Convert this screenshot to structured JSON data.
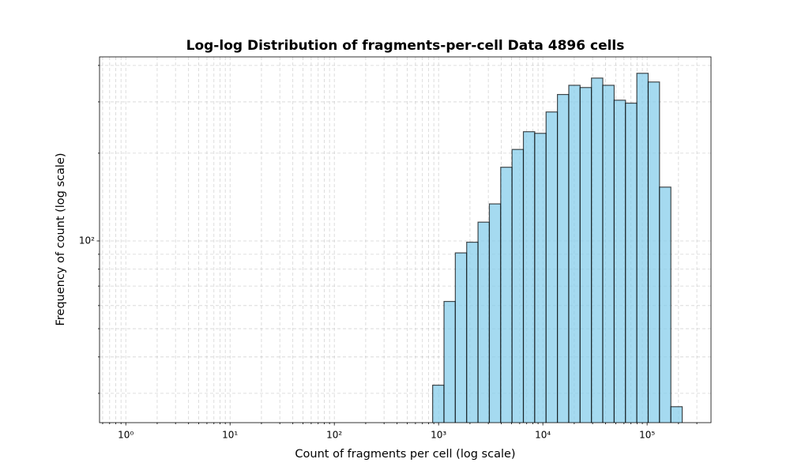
{
  "chart_data": {
    "type": "histogram",
    "title": "Log-log Distribution of fragments-per-cell Data 4896 cells",
    "xlabel": "Count of fragments per cell (log scale)",
    "ylabel": "Frequency of count (log scale)",
    "bins": [
      877,
      1127,
      1447,
      1860,
      2389,
      3069,
      3943,
      5065,
      6507,
      8360,
      10740,
      13800,
      17730,
      22770,
      29260,
      37580,
      48290,
      62030,
      79690,
      102400,
      131500,
      169000,
      217100
    ],
    "values": [
      32,
      62,
      91,
      99,
      116,
      134,
      179,
      206,
      237,
      234,
      277,
      318,
      342,
      336,
      362,
      342,
      304,
      297,
      376,
      351,
      153,
      27
    ],
    "color": "#87ceeb",
    "edgecolor": "#000000",
    "xlog": true,
    "ylog": true,
    "grid": true,
    "xlim": [
      0.56,
      410000
    ],
    "ylim": [
      23.8,
      428
    ],
    "xticks": [
      {
        "value": 1,
        "label": "10⁰"
      },
      {
        "value": 10,
        "label": "10¹"
      },
      {
        "value": 100,
        "label": "10²"
      },
      {
        "value": 1000,
        "label": "10³"
      },
      {
        "value": 10000,
        "label": "10⁴"
      },
      {
        "value": 100000,
        "label": "10⁵"
      }
    ],
    "xminor_ticks": [
      0.6,
      0.7,
      0.8,
      0.9,
      2,
      3,
      4,
      5,
      6,
      7,
      8,
      9,
      20,
      30,
      40,
      50,
      60,
      70,
      80,
      90,
      200,
      300,
      400,
      500,
      600,
      700,
      800,
      900,
      2000,
      3000,
      4000,
      5000,
      6000,
      7000,
      8000,
      9000,
      20000,
      30000,
      40000,
      50000,
      60000,
      70000,
      80000,
      90000,
      200000,
      300000
    ],
    "yticks": [
      {
        "value": 100,
        "label": "10²"
      }
    ],
    "yminor_ticks": [
      30,
      40,
      50,
      60,
      70,
      80,
      90,
      200,
      300,
      400
    ]
  }
}
